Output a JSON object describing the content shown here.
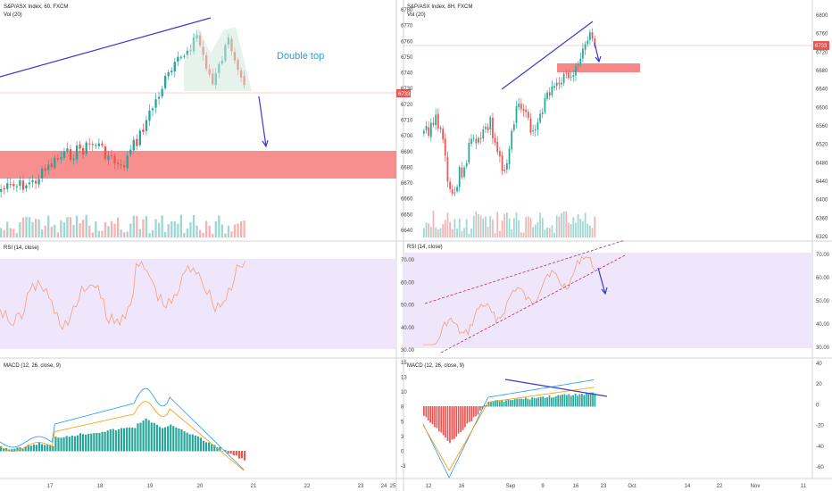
{
  "left": {
    "title": "S&P/ASX Index, 60, FXCM",
    "vol_label": "Vol (20)",
    "rsi_label": "RSI (14, close)",
    "macd_label": "MACD (12, 26, close, 9)",
    "annotation": "Double top",
    "price_tag": "6733",
    "price_ticks": [
      "6780",
      "6770",
      "6760",
      "6750",
      "6740",
      "6730",
      "6720",
      "6710",
      "6700",
      "6690",
      "6680",
      "6670",
      "6660",
      "6650",
      "6640"
    ],
    "rsi_ticks": [
      "70.00",
      "60.00",
      "50.00",
      "40.00",
      "30.00"
    ],
    "macd_ticks": [
      "15",
      "13",
      "10",
      "8",
      "5",
      "3",
      "0",
      "-3"
    ],
    "x_ticks": [
      "17",
      "18",
      "19",
      "20",
      "21",
      "22",
      "23",
      "24",
      "25"
    ]
  },
  "right": {
    "title": "S&P/ASX Index, 8H, FXCM",
    "vol_label": "Vol (20)",
    "rsi_label": "RSI (14, close)",
    "macd_label": "MACD (12, 26, close, 9)",
    "price_tag": "6733",
    "price_ticks": [
      "6800",
      "6760",
      "6720",
      "6680",
      "6640",
      "6600",
      "6560",
      "6520",
      "6480",
      "6440",
      "6400",
      "6360",
      "6320"
    ],
    "rsi_ticks": [
      "70.00",
      "60.00",
      "50.00",
      "40.00",
      "30.00"
    ],
    "macd_ticks": [
      "40",
      "20",
      "0",
      "-20",
      "-40",
      "-60"
    ],
    "x_ticks": [
      "12",
      "16",
      "Sep",
      "9",
      "16",
      "23",
      "Oct",
      "14",
      "22",
      "Nov",
      "11"
    ]
  },
  "colors": {
    "up": "#26a69a",
    "down": "#ef5350",
    "zone": "#f77b7b",
    "trendline": "#3a3ad0",
    "rsi_band": "#efe6fb",
    "rsi_line": "#f2a07a",
    "macd_line": "#2196f3",
    "signal_line": "#ff9800",
    "annotation": "#2a9fd6"
  },
  "chart_data": [
    {
      "type": "candlestick",
      "title": "S&P/ASX Index, 60, FXCM",
      "ylim": [
        6635,
        6790
      ],
      "resistance_zone": [
        6677,
        6697
      ],
      "last_price": 6733,
      "annotations": [
        "Double top"
      ],
      "x_tick_labels": [
        "17",
        "18",
        "19",
        "20",
        "21",
        "22",
        "23",
        "24",
        "25"
      ],
      "subpanes": [
        "Vol (20)",
        "RSI (14, close)",
        "MACD (12, 26, close, 9)"
      ]
    },
    {
      "type": "candlestick",
      "title": "S&P/ASX Index, 8H, FXCM",
      "ylim": [
        6315,
        6810
      ],
      "support_zone": [
        6688,
        6702
      ],
      "last_price": 6733,
      "x_tick_labels": [
        "12",
        "16",
        "Sep",
        "9",
        "16",
        "23",
        "Oct",
        "14",
        "22",
        "Nov",
        "11"
      ],
      "subpanes": [
        "Vol (20)",
        "RSI (14, close)",
        "MACD (12, 26, close, 9)"
      ]
    }
  ]
}
